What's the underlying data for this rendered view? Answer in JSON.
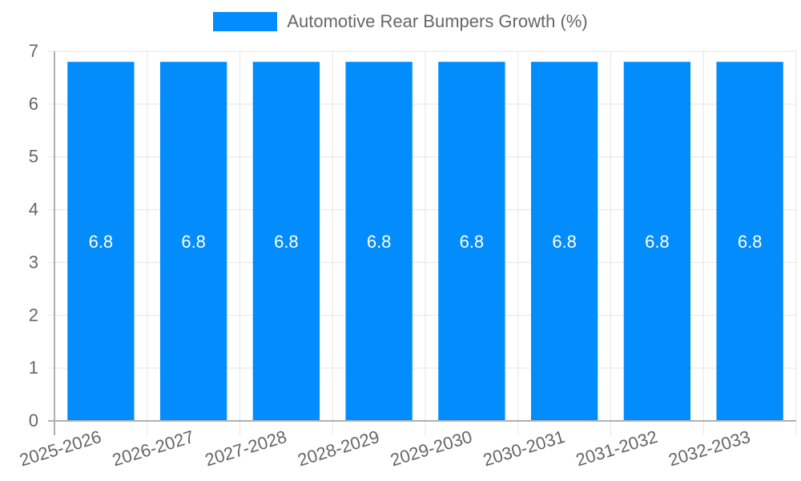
{
  "chart_data": {
    "type": "bar",
    "title": "",
    "xlabel": "",
    "ylabel": "",
    "categories": [
      "2025-2026",
      "2026-2027",
      "2027-2028",
      "2028-2029",
      "2029-2030",
      "2030-2031",
      "2031-2032",
      "2032-2033"
    ],
    "series": [
      {
        "name": "Automotive Rear Bumpers Growth (%)",
        "values": [
          6.8,
          6.8,
          6.8,
          6.8,
          6.8,
          6.8,
          6.8,
          6.8
        ],
        "color": "#038cfc"
      }
    ],
    "ylim": [
      0,
      7
    ],
    "yticks": [
      0,
      1,
      2,
      3,
      4,
      5,
      6,
      7
    ],
    "grid": true,
    "legend_position": "top",
    "data_labels": true
  },
  "legend": {
    "label": "Automotive Rear Bumpers Growth (%)",
    "color": "#038cfc"
  },
  "colors": {
    "grid": "#e5e5e5",
    "axis": "#b0b0b0",
    "tick_text": "#666666",
    "bar_label_text": "#ffffff"
  }
}
